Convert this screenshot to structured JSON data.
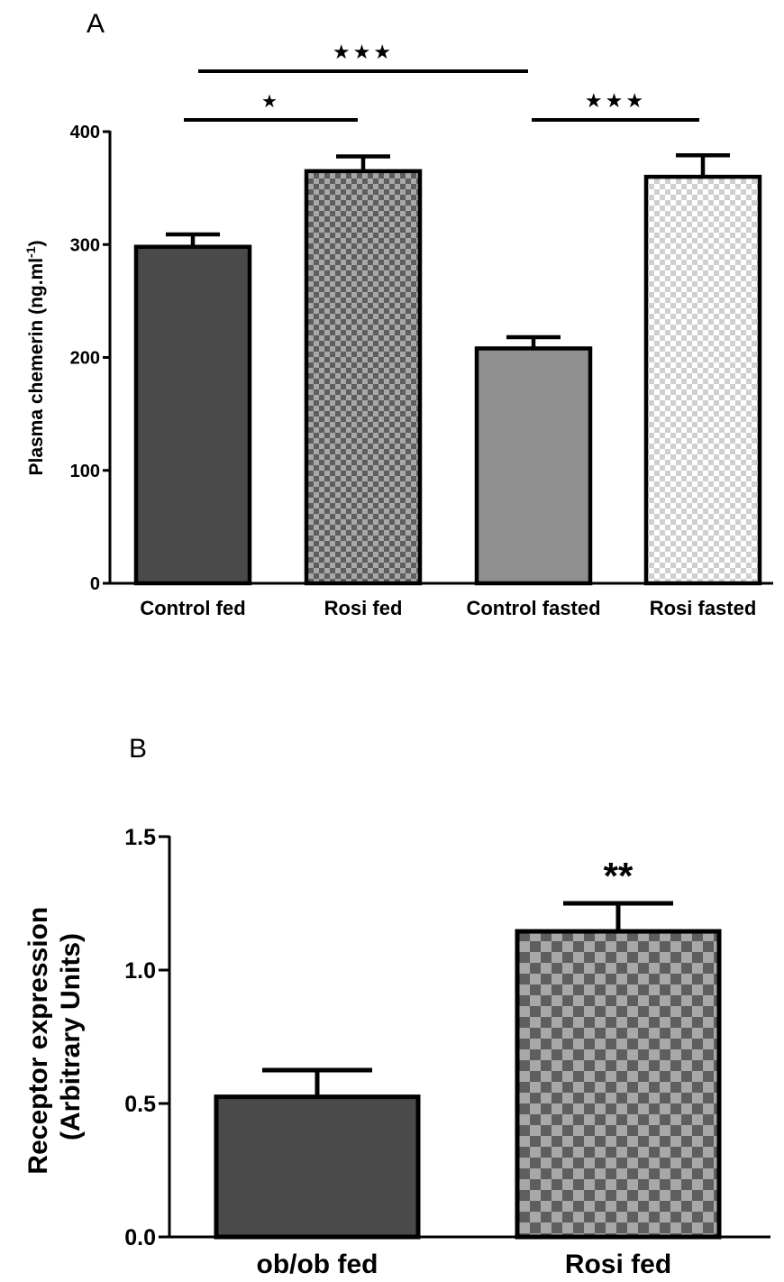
{
  "chart_data": [
    {
      "type": "bar",
      "panel": "A",
      "categories": [
        "Control fed",
        "Rosi fed",
        "Control fasted",
        "Rosi fasted"
      ],
      "values": [
        298,
        365,
        208,
        360
      ],
      "errors": [
        11,
        13,
        10,
        19
      ],
      "fills": [
        "solid-dark",
        "checker-dark",
        "solid-light",
        "checker-light"
      ],
      "ylabel_main": "Plasma chemerin (ng.ml",
      "ylabel_sup": "-1",
      "ylabel_end": ")",
      "ylim": [
        0,
        400
      ],
      "yticks": [
        "0",
        "100",
        "200",
        "300",
        "400"
      ],
      "significance": [
        {
          "from": 0,
          "to": 1,
          "label": "★"
        },
        {
          "from": 0,
          "to": 2,
          "label": "★★★"
        },
        {
          "from": 2,
          "to": 3,
          "label": "★★★"
        }
      ]
    },
    {
      "type": "bar",
      "panel": "B",
      "categories": [
        "ob/ob fed",
        "Rosi fed"
      ],
      "values": [
        0.525,
        1.145
      ],
      "errors": [
        0.1,
        0.105
      ],
      "fills": [
        "solid-dark",
        "checker-dark"
      ],
      "ylabel_lines": [
        "Receptor expression",
        "(Arbitrary Units)"
      ],
      "ylim": [
        0,
        1.5
      ],
      "yticks": [
        "0.0",
        "0.5",
        "1.0",
        "1.5"
      ],
      "annotations": [
        {
          "bar": 1,
          "label": "**"
        }
      ]
    }
  ],
  "colors": {
    "dark_bar": "#4a4a4a",
    "light_bar": "#8f8f8f",
    "checker_dark_a": "#5e5e5e",
    "checker_dark_b": "#a8a8a8",
    "checker_light_a": "#cfcfcf",
    "checker_light_b": "#ffffff",
    "stroke": "#000000"
  }
}
